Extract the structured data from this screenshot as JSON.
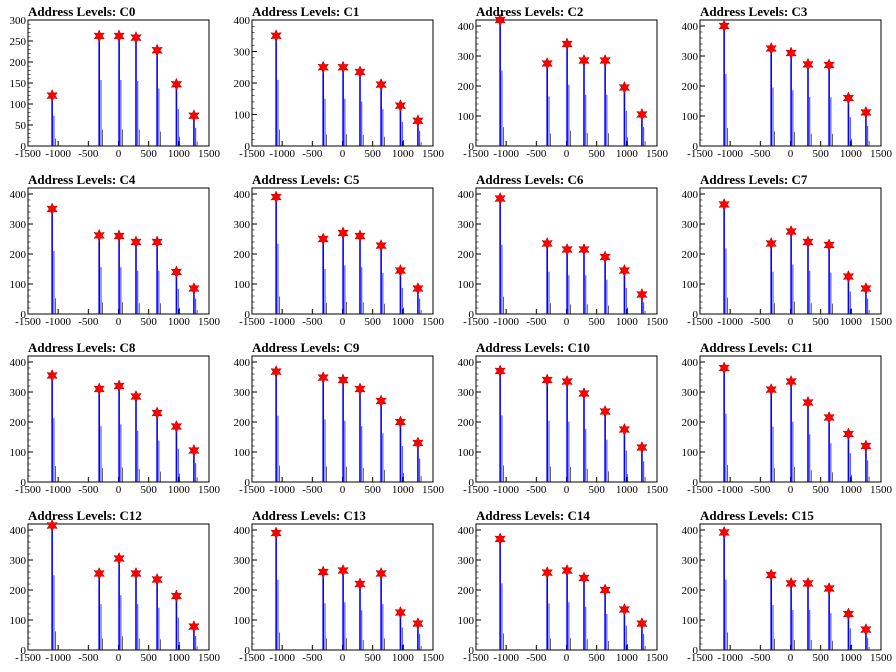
{
  "chart_data": [
    {
      "type": "bar",
      "title": "Address Levels: C0",
      "ylim": [
        0,
        300
      ],
      "yticks": [
        0,
        50,
        100,
        150,
        200,
        250,
        300
      ],
      "xticks": [
        "-1500",
        "-1000",
        "-500",
        "0",
        "500",
        "1000",
        "1500"
      ],
      "xlim": [
        -1500,
        1500
      ],
      "peaks": [
        {
          "x": -1100,
          "y": 120
        },
        {
          "x": -320,
          "y": 262
        },
        {
          "x": 10,
          "y": 262
        },
        {
          "x": 290,
          "y": 258
        },
        {
          "x": 640,
          "y": 228
        },
        {
          "x": 960,
          "y": 147
        },
        {
          "x": 1250,
          "y": 72
        }
      ]
    },
    {
      "type": "bar",
      "title": "Address Levels: C1",
      "ylim": [
        0,
        400
      ],
      "yticks": [
        0,
        100,
        200,
        300,
        400
      ],
      "xticks": [
        "-1500",
        "-1000",
        "-500",
        "0",
        "500",
        "1000",
        "1500"
      ],
      "xlim": [
        -1500,
        1500
      ],
      "peaks": [
        {
          "x": -1100,
          "y": 350
        },
        {
          "x": -320,
          "y": 250
        },
        {
          "x": 10,
          "y": 250
        },
        {
          "x": 290,
          "y": 235
        },
        {
          "x": 640,
          "y": 195
        },
        {
          "x": 960,
          "y": 128
        },
        {
          "x": 1250,
          "y": 80
        }
      ]
    },
    {
      "type": "bar",
      "title": "Address Levels: C2",
      "ylim": [
        0,
        420
      ],
      "yticks": [
        0,
        100,
        200,
        300,
        400
      ],
      "xticks": [
        "-1500",
        "-1000",
        "-500",
        "0",
        "500",
        "1000",
        "1500"
      ],
      "xlim": [
        -1500,
        1500
      ],
      "peaks": [
        {
          "x": -1100,
          "y": 420
        },
        {
          "x": -320,
          "y": 275
        },
        {
          "x": 10,
          "y": 340
        },
        {
          "x": 290,
          "y": 285
        },
        {
          "x": 640,
          "y": 285
        },
        {
          "x": 960,
          "y": 195
        },
        {
          "x": 1250,
          "y": 105
        }
      ]
    },
    {
      "type": "bar",
      "title": "Address Levels: C3",
      "ylim": [
        0,
        420
      ],
      "yticks": [
        0,
        100,
        200,
        300,
        400
      ],
      "xticks": [
        "-1500",
        "-1000",
        "-500",
        "0",
        "500",
        "1000",
        "1500"
      ],
      "xlim": [
        -1500,
        1500
      ],
      "peaks": [
        {
          "x": -1100,
          "y": 400
        },
        {
          "x": -320,
          "y": 325
        },
        {
          "x": 10,
          "y": 310
        },
        {
          "x": 290,
          "y": 272
        },
        {
          "x": 640,
          "y": 270
        },
        {
          "x": 960,
          "y": 160
        },
        {
          "x": 1250,
          "y": 112
        }
      ]
    },
    {
      "type": "bar",
      "title": "Address Levels: C4",
      "ylim": [
        0,
        420
      ],
      "yticks": [
        0,
        100,
        200,
        300,
        400
      ],
      "xticks": [
        "-1500",
        "-1000",
        "-500",
        "0",
        "500",
        "1000",
        "1500"
      ],
      "xlim": [
        -1500,
        1500
      ],
      "peaks": [
        {
          "x": -1100,
          "y": 350
        },
        {
          "x": -320,
          "y": 262
        },
        {
          "x": 10,
          "y": 260
        },
        {
          "x": 290,
          "y": 240
        },
        {
          "x": 640,
          "y": 240
        },
        {
          "x": 960,
          "y": 140
        },
        {
          "x": 1250,
          "y": 85
        }
      ]
    },
    {
      "type": "bar",
      "title": "Address Levels: C5",
      "ylim": [
        0,
        420
      ],
      "yticks": [
        0,
        100,
        200,
        300,
        400
      ],
      "xticks": [
        "-1500",
        "-1000",
        "-500",
        "0",
        "500",
        "1000",
        "1500"
      ],
      "xlim": [
        -1500,
        1500
      ],
      "peaks": [
        {
          "x": -1100,
          "y": 390
        },
        {
          "x": -320,
          "y": 250
        },
        {
          "x": 10,
          "y": 270
        },
        {
          "x": 290,
          "y": 260
        },
        {
          "x": 640,
          "y": 228
        },
        {
          "x": 960,
          "y": 145
        },
        {
          "x": 1250,
          "y": 85
        }
      ]
    },
    {
      "type": "bar",
      "title": "Address Levels: C6",
      "ylim": [
        0,
        420
      ],
      "yticks": [
        0,
        100,
        200,
        300,
        400
      ],
      "xticks": [
        "-1500",
        "-1000",
        "-500",
        "0",
        "500",
        "1000",
        "1500"
      ],
      "xlim": [
        -1500,
        1500
      ],
      "peaks": [
        {
          "x": -1100,
          "y": 385
        },
        {
          "x": -320,
          "y": 235
        },
        {
          "x": 10,
          "y": 215
        },
        {
          "x": 290,
          "y": 215
        },
        {
          "x": 640,
          "y": 190
        },
        {
          "x": 960,
          "y": 145
        },
        {
          "x": 1250,
          "y": 65
        }
      ]
    },
    {
      "type": "bar",
      "title": "Address Levels: C7",
      "ylim": [
        0,
        420
      ],
      "yticks": [
        0,
        100,
        200,
        300,
        400
      ],
      "xticks": [
        "-1500",
        "-1000",
        "-500",
        "0",
        "500",
        "1000",
        "1500"
      ],
      "xlim": [
        -1500,
        1500
      ],
      "peaks": [
        {
          "x": -1100,
          "y": 365
        },
        {
          "x": -320,
          "y": 235
        },
        {
          "x": 10,
          "y": 275
        },
        {
          "x": 290,
          "y": 240
        },
        {
          "x": 640,
          "y": 230
        },
        {
          "x": 960,
          "y": 125
        },
        {
          "x": 1250,
          "y": 85
        }
      ]
    },
    {
      "type": "bar",
      "title": "Address Levels: C8",
      "ylim": [
        0,
        420
      ],
      "yticks": [
        0,
        100,
        200,
        300,
        400
      ],
      "xticks": [
        "-1500",
        "-1000",
        "-500",
        "0",
        "500",
        "1000",
        "1500"
      ],
      "xlim": [
        -1500,
        1500
      ],
      "peaks": [
        {
          "x": -1100,
          "y": 355
        },
        {
          "x": -320,
          "y": 310
        },
        {
          "x": 10,
          "y": 320
        },
        {
          "x": 290,
          "y": 285
        },
        {
          "x": 640,
          "y": 230
        },
        {
          "x": 960,
          "y": 185
        },
        {
          "x": 1250,
          "y": 105
        }
      ]
    },
    {
      "type": "bar",
      "title": "Address Levels: C9",
      "ylim": [
        0,
        420
      ],
      "yticks": [
        0,
        100,
        200,
        300,
        400
      ],
      "xticks": [
        "-1500",
        "-1000",
        "-500",
        "0",
        "500",
        "1000",
        "1500"
      ],
      "xlim": [
        -1500,
        1500
      ],
      "peaks": [
        {
          "x": -1100,
          "y": 368
        },
        {
          "x": -320,
          "y": 348
        },
        {
          "x": 10,
          "y": 340
        },
        {
          "x": 290,
          "y": 310
        },
        {
          "x": 640,
          "y": 270
        },
        {
          "x": 960,
          "y": 200
        },
        {
          "x": 1250,
          "y": 130
        }
      ]
    },
    {
      "type": "bar",
      "title": "Address Levels: C10",
      "ylim": [
        0,
        420
      ],
      "yticks": [
        0,
        100,
        200,
        300,
        400
      ],
      "xticks": [
        "-1500",
        "-1000",
        "-500",
        "0",
        "500",
        "1000",
        "1500"
      ],
      "xlim": [
        -1500,
        1500
      ],
      "peaks": [
        {
          "x": -1100,
          "y": 370
        },
        {
          "x": -320,
          "y": 340
        },
        {
          "x": 10,
          "y": 335
        },
        {
          "x": 290,
          "y": 295
        },
        {
          "x": 640,
          "y": 235
        },
        {
          "x": 960,
          "y": 175
        },
        {
          "x": 1250,
          "y": 115
        }
      ]
    },
    {
      "type": "bar",
      "title": "Address Levels: C11",
      "ylim": [
        0,
        420
      ],
      "yticks": [
        0,
        100,
        200,
        300,
        400
      ],
      "xticks": [
        "-1500",
        "-1000",
        "-500",
        "0",
        "500",
        "1000",
        "1500"
      ],
      "xlim": [
        -1500,
        1500
      ],
      "peaks": [
        {
          "x": -1100,
          "y": 380
        },
        {
          "x": -320,
          "y": 308
        },
        {
          "x": 10,
          "y": 335
        },
        {
          "x": 290,
          "y": 265
        },
        {
          "x": 640,
          "y": 215
        },
        {
          "x": 960,
          "y": 160
        },
        {
          "x": 1250,
          "y": 120
        }
      ]
    },
    {
      "type": "bar",
      "title": "Address Levels: C12",
      "ylim": [
        0,
        420
      ],
      "yticks": [
        0,
        100,
        200,
        300,
        400
      ],
      "xticks": [
        "-1500",
        "-1000",
        "-500",
        "0",
        "500",
        "1000",
        "1500"
      ],
      "xlim": [
        -1500,
        1500
      ],
      "peaks": [
        {
          "x": -1100,
          "y": 415
        },
        {
          "x": -320,
          "y": 255
        },
        {
          "x": 10,
          "y": 305
        },
        {
          "x": 290,
          "y": 255
        },
        {
          "x": 640,
          "y": 235
        },
        {
          "x": 960,
          "y": 180
        },
        {
          "x": 1250,
          "y": 78
        }
      ]
    },
    {
      "type": "bar",
      "title": "Address Levels: C13",
      "ylim": [
        0,
        420
      ],
      "yticks": [
        0,
        100,
        200,
        300,
        400
      ],
      "xticks": [
        "-1500",
        "-1000",
        "-500",
        "0",
        "500",
        "1000",
        "1500"
      ],
      "xlim": [
        -1500,
        1500
      ],
      "peaks": [
        {
          "x": -1100,
          "y": 390
        },
        {
          "x": -320,
          "y": 260
        },
        {
          "x": 10,
          "y": 265
        },
        {
          "x": 290,
          "y": 220
        },
        {
          "x": 640,
          "y": 255
        },
        {
          "x": 960,
          "y": 125
        },
        {
          "x": 1250,
          "y": 88
        }
      ]
    },
    {
      "type": "bar",
      "title": "Address Levels: C14",
      "ylim": [
        0,
        420
      ],
      "yticks": [
        0,
        100,
        200,
        300,
        400
      ],
      "xticks": [
        "-1500",
        "-1000",
        "-500",
        "0",
        "500",
        "1000",
        "1500"
      ],
      "xlim": [
        -1500,
        1500
      ],
      "peaks": [
        {
          "x": -1100,
          "y": 370
        },
        {
          "x": -320,
          "y": 258
        },
        {
          "x": 10,
          "y": 265
        },
        {
          "x": 290,
          "y": 240
        },
        {
          "x": 640,
          "y": 200
        },
        {
          "x": 960,
          "y": 135
        },
        {
          "x": 1250,
          "y": 88
        }
      ]
    },
    {
      "type": "bar",
      "title": "Address Levels: C15",
      "ylim": [
        0,
        420
      ],
      "yticks": [
        0,
        100,
        200,
        300,
        400
      ],
      "xticks": [
        "-1500",
        "-1000",
        "-500",
        "0",
        "500",
        "1000",
        "1500"
      ],
      "xlim": [
        -1500,
        1500
      ],
      "peaks": [
        {
          "x": -1100,
          "y": 392
        },
        {
          "x": -320,
          "y": 250
        },
        {
          "x": 10,
          "y": 222
        },
        {
          "x": 290,
          "y": 222
        },
        {
          "x": 640,
          "y": 205
        },
        {
          "x": 960,
          "y": 120
        },
        {
          "x": 1250,
          "y": 68
        }
      ]
    }
  ],
  "colors": {
    "bars": "#0000ff",
    "markers": "#ff0000",
    "axis": "#000000"
  }
}
